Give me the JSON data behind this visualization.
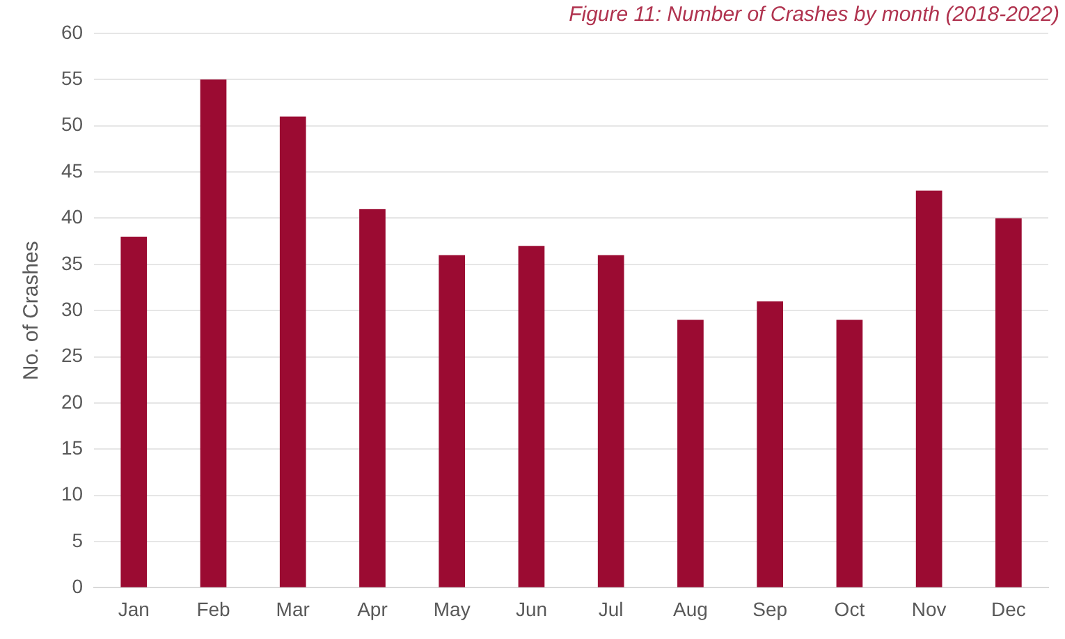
{
  "chart_data": {
    "type": "bar",
    "title": "Figure 11: Number of Crashes by month (2018-2022)",
    "ylabel": "No. of Crashes",
    "categories": [
      "Jan",
      "Feb",
      "Mar",
      "Apr",
      "May",
      "Jun",
      "Jul",
      "Aug",
      "Sep",
      "Oct",
      "Nov",
      "Dec"
    ],
    "values": [
      38,
      55,
      51,
      41,
      36,
      37,
      36,
      29,
      31,
      29,
      43,
      40
    ],
    "color": "#9b0b32",
    "ylim": [
      0,
      60
    ],
    "yticks": [
      0,
      5,
      10,
      15,
      20,
      25,
      30,
      35,
      40,
      45,
      50,
      55,
      60
    ],
    "grid": "y",
    "legend": false
  }
}
